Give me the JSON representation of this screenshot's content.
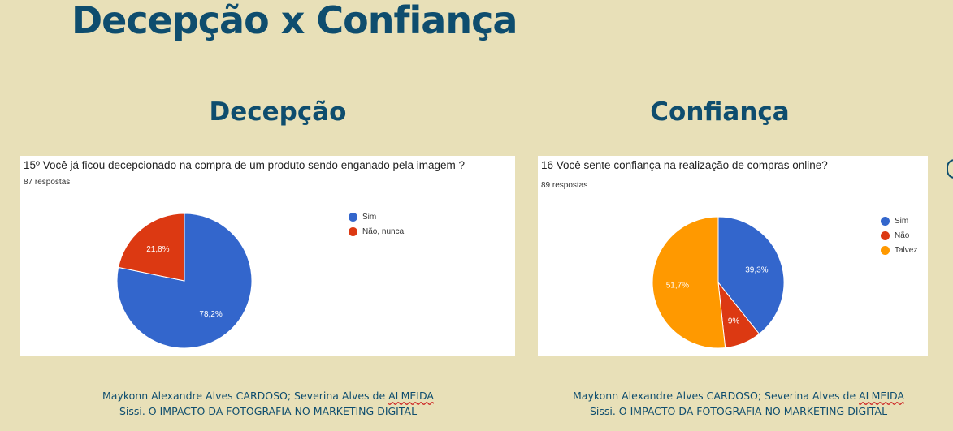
{
  "page": {
    "title": "Decepção x Confiança"
  },
  "sections": [
    {
      "title": "Decepção",
      "caption": {
        "line1_prefix": "Maykonn Alexandre Alves CARDOSO; Severina Alves de ",
        "line1_squiggle": "ALMEIDA",
        "line2": "Sissi. O IMPACTO DA FOTOGRAFIA NO MARKETING DIGITAL"
      }
    },
    {
      "title": "Confiança",
      "caption": {
        "line1_prefix": "Maykonn Alexandre Alves CARDOSO; Severina Alves de ",
        "line1_squiggle": "ALMEIDA",
        "line2": "Sissi. O IMPACTO DA FOTOGRAFIA NO MARKETING DIGITAL"
      }
    }
  ],
  "chart_data": [
    {
      "type": "pie",
      "title": "15º Você já ficou decepcionado na compra de um produto sendo enganado pela imagem ?",
      "subtitle": "87 respostas",
      "labels": [
        "Sim",
        "Não, nunca"
      ],
      "values": [
        78.2,
        21.8
      ],
      "value_labels": [
        "78,2%",
        "21,8%"
      ],
      "colors": [
        "#3366cc",
        "#dc3912"
      ],
      "legend_position": "right"
    },
    {
      "type": "pie",
      "title": "16 Você sente confiança na realização de compras online?",
      "subtitle": "89 respostas",
      "labels": [
        "Sim",
        "Não",
        "Talvez"
      ],
      "values": [
        39.3,
        9.0,
        51.7
      ],
      "value_labels": [
        "39,3%",
        "9%",
        "51,7%"
      ],
      "colors": [
        "#3366cc",
        "#dc3912",
        "#ff9900"
      ],
      "legend_position": "right"
    }
  ]
}
